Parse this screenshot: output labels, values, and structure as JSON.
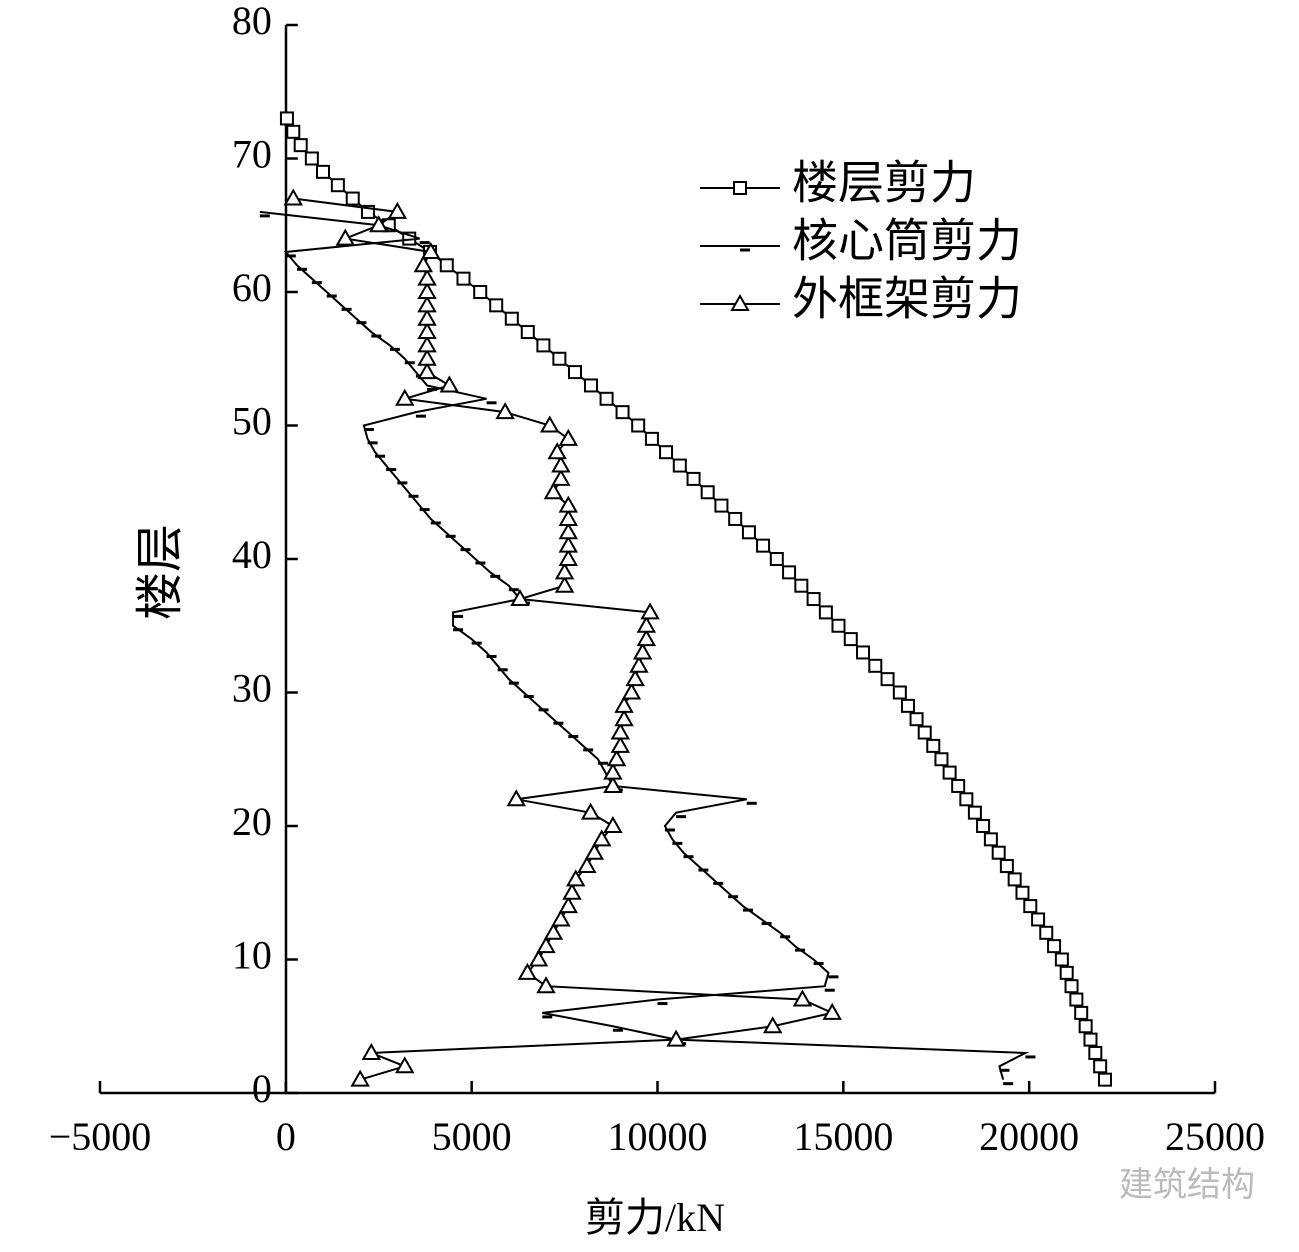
{
  "chart_data": {
    "type": "line",
    "xlabel": "剪力/kN",
    "ylabel": "楼层",
    "watermark": "建筑结构",
    "xlim": [
      -5000,
      25000
    ],
    "xticks": [
      {
        "value": -5000,
        "label": "−5000"
      },
      0,
      5000,
      10000,
      15000,
      20000,
      25000
    ],
    "ylim": [
      0,
      80
    ],
    "yticks": [
      0,
      10,
      20,
      30,
      40,
      50,
      60,
      70,
      80
    ],
    "legend": "upper right",
    "y": [
      1,
      2,
      3,
      4,
      5,
      6,
      7,
      8,
      9,
      10,
      11,
      12,
      13,
      14,
      15,
      16,
      17,
      18,
      19,
      20,
      21,
      22,
      23,
      24,
      25,
      26,
      27,
      28,
      29,
      30,
      31,
      32,
      33,
      34,
      35,
      36,
      37,
      38,
      39,
      40,
      41,
      42,
      43,
      44,
      45,
      46,
      47,
      48,
      49,
      50,
      51,
      52,
      53,
      54,
      55,
      56,
      57,
      58,
      59,
      60,
      61,
      62,
      63,
      64,
      65,
      66,
      67,
      68,
      69,
      70,
      71,
      72,
      73
    ],
    "series": [
      {
        "name": "楼层剪力",
        "color": "#000000",
        "marker": "square",
        "values": [
          22040,
          21910,
          21780,
          21650,
          21520,
          21400,
          21270,
          21140,
          21010,
          20880,
          20670,
          20460,
          20240,
          20030,
          19820,
          19610,
          19400,
          19180,
          18970,
          18760,
          18540,
          18310,
          18090,
          17860,
          17640,
          17420,
          17190,
          16970,
          16740,
          16520,
          16190,
          15860,
          15530,
          15200,
          14870,
          14530,
          14200,
          13870,
          13540,
          13210,
          12840,
          12460,
          12090,
          11720,
          11350,
          10970,
          10600,
          10230,
          9850,
          9480,
          9060,
          8630,
          8210,
          7780,
          7360,
          6930,
          6510,
          6080,
          5660,
          5230,
          4780,
          4330,
          3880,
          3320,
          2770,
          2210,
          1800,
          1400,
          1000,
          700,
          400,
          200,
          30
        ]
      },
      {
        "name": "核心筒剪力",
        "color": "#000000",
        "marker": "dash",
        "values": [
          19300,
          19200,
          19900,
          10500,
          8800,
          6900,
          10000,
          14500,
          14600,
          14200,
          13700,
          13300,
          12800,
          12300,
          11900,
          11500,
          11100,
          10700,
          10400,
          10200,
          10500,
          12400,
          8800,
          8600,
          8400,
          8000,
          7600,
          7200,
          6800,
          6400,
          6000,
          5700,
          5400,
          5000,
          4500,
          4500,
          6300,
          6000,
          5500,
          5100,
          4700,
          4300,
          3900,
          3600,
          3300,
          3000,
          2700,
          2400,
          2200,
          2100,
          3500,
          5400,
          3800,
          3500,
          3200,
          2800,
          2300,
          1900,
          1500,
          1100,
          700,
          300,
          0,
          3600,
          2500,
          -700,
          null,
          null,
          null,
          null,
          null,
          null,
          null
        ]
      },
      {
        "name": "外框架剪力",
        "color": "#000000",
        "marker": "triangle",
        "values": [
          2000,
          3200,
          2300,
          10500,
          13100,
          14700,
          13900,
          7000,
          6500,
          6800,
          7000,
          7200,
          7400,
          7600,
          7700,
          7800,
          8100,
          8300,
          8500,
          8800,
          8200,
          6200,
          8800,
          8800,
          8900,
          9000,
          9000,
          9100,
          9100,
          9300,
          9400,
          9500,
          9600,
          9700,
          9700,
          9800,
          6300,
          7500,
          7500,
          7600,
          7600,
          7600,
          7600,
          7600,
          7200,
          7400,
          7400,
          7300,
          7600,
          7100,
          5900,
          3200,
          4400,
          3800,
          3800,
          3800,
          3800,
          3800,
          3800,
          3800,
          3800,
          3700,
          3900,
          1600,
          2500,
          3000,
          200,
          null,
          null,
          null,
          null,
          null,
          null
        ]
      }
    ]
  }
}
